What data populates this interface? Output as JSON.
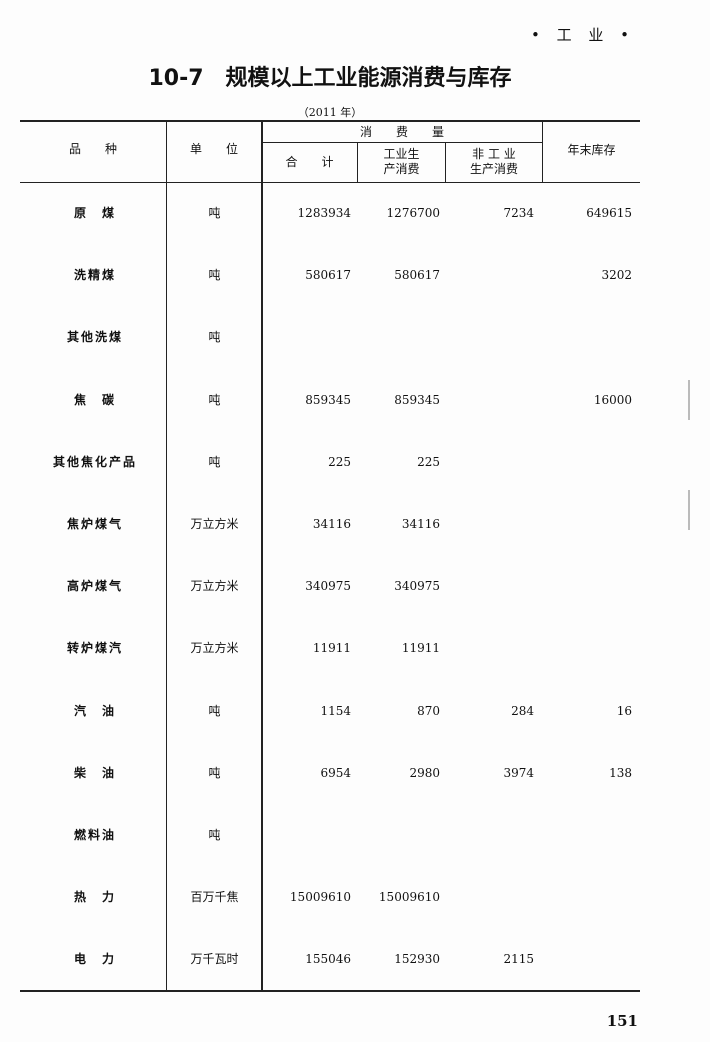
{
  "running_head": "• 工 业 •",
  "title": "10-7　规模以上工业能源消费与库存",
  "year_note": "（2011 年）",
  "headers": {
    "variety": "品　　种",
    "unit": "单　　位",
    "consumption": "消　　费　　量",
    "total": "合　　计",
    "industrial": "工业生\n产消费",
    "non_industrial": "非 工 业\n生产消费",
    "year_end_stock": "年末库存"
  },
  "rows": [
    {
      "name": "原　煤",
      "unit": "吨",
      "total": "1283934",
      "industrial": "1276700",
      "non_industrial": "7234",
      "stock": "649615"
    },
    {
      "name": "洗精煤",
      "unit": "吨",
      "total": "580617",
      "industrial": "580617",
      "non_industrial": "",
      "stock": "3202"
    },
    {
      "name": "其他洗煤",
      "unit": "吨",
      "total": "",
      "industrial": "",
      "non_industrial": "",
      "stock": ""
    },
    {
      "name": "焦　碳",
      "unit": "吨",
      "total": "859345",
      "industrial": "859345",
      "non_industrial": "",
      "stock": "16000"
    },
    {
      "name": "其他焦化产品",
      "unit": "吨",
      "total": "225",
      "industrial": "225",
      "non_industrial": "",
      "stock": ""
    },
    {
      "name": "焦炉煤气",
      "unit": "万立方米",
      "total": "34116",
      "industrial": "34116",
      "non_industrial": "",
      "stock": ""
    },
    {
      "name": "高炉煤气",
      "unit": "万立方米",
      "total": "340975",
      "industrial": "340975",
      "non_industrial": "",
      "stock": ""
    },
    {
      "name": "转炉煤汽",
      "unit": "万立方米",
      "total": "11911",
      "industrial": "11911",
      "non_industrial": "",
      "stock": ""
    },
    {
      "name": "汽　油",
      "unit": "吨",
      "total": "1154",
      "industrial": "870",
      "non_industrial": "284",
      "stock": "16"
    },
    {
      "name": "柴　油",
      "unit": "吨",
      "total": "6954",
      "industrial": "2980",
      "non_industrial": "3974",
      "stock": "138"
    },
    {
      "name": "燃料油",
      "unit": "吨",
      "total": "",
      "industrial": "",
      "non_industrial": "",
      "stock": ""
    },
    {
      "name": "热　力",
      "unit": "百万千焦",
      "total": "15009610",
      "industrial": "15009610",
      "non_industrial": "",
      "stock": ""
    },
    {
      "name": "电　力",
      "unit": "万千瓦时",
      "total": "155046",
      "industrial": "152930",
      "non_industrial": "2115",
      "stock": ""
    }
  ],
  "page_number": "151"
}
